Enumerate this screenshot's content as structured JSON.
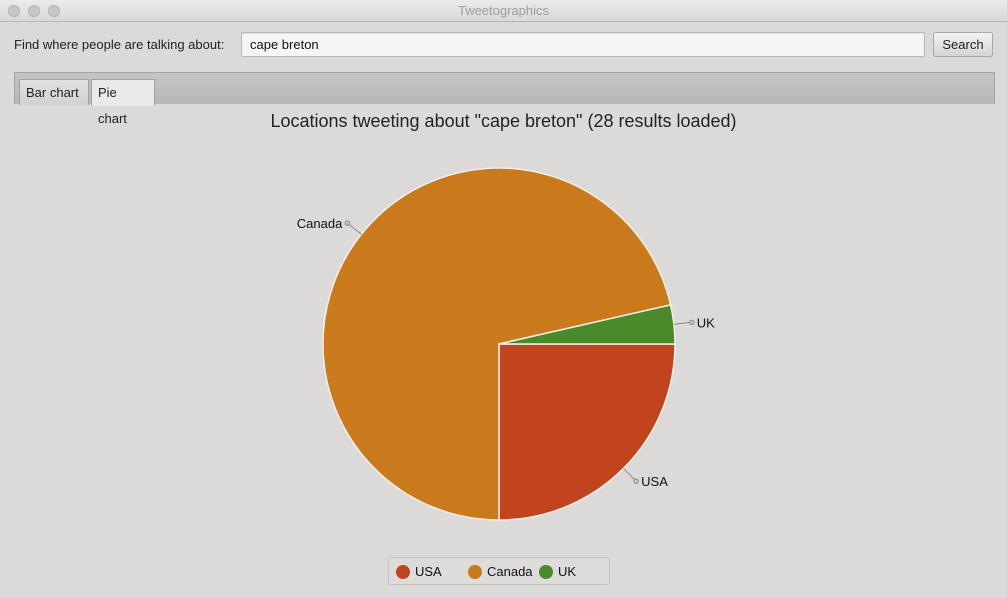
{
  "window": {
    "title": "Tweetographics"
  },
  "search": {
    "label": "Find where people are talking about:",
    "value": "cape breton",
    "button_label": "Search"
  },
  "tabs": [
    {
      "label": "Bar chart",
      "selected": false
    },
    {
      "label": "Pie chart",
      "selected": true
    }
  ],
  "chart_data": {
    "type": "pie",
    "title": "Locations tweeting about \"cape breton\" (28 results loaded)",
    "slices": [
      {
        "label": "USA",
        "value": 7,
        "color": "#c1441f"
      },
      {
        "label": "Canada",
        "value": 20,
        "color": "#c97a1c"
      },
      {
        "label": "UK",
        "value": 1,
        "color": "#4a8a2a"
      }
    ],
    "legend": [
      "USA",
      "Canada",
      "UK"
    ],
    "legend_position": "bottom"
  }
}
